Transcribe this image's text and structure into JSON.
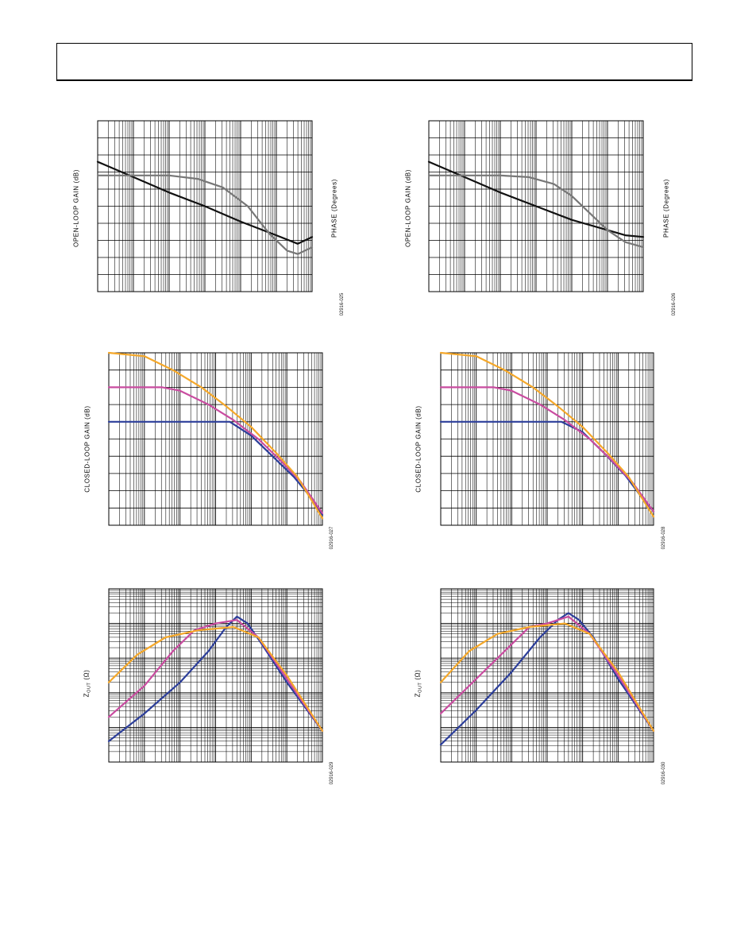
{
  "figures": [
    {
      "id": "ol-left",
      "ylabel": "OPEN-LOOP GAIN (dB)",
      "ylabel2": "PHASE (Degrees)",
      "code": "02916-025",
      "chart_data": {
        "type": "line",
        "xscale": "log",
        "yscale": "linear",
        "grid": true,
        "xlim": [
          0,
          6
        ],
        "ylim": [
          0,
          10
        ],
        "series": [
          {
            "color": "#111111",
            "points": [
              [
                0,
                7.6
              ],
              [
                1,
                6.7
              ],
              [
                2,
                5.8
              ],
              [
                3,
                5.0
              ],
              [
                4,
                4.1
              ],
              [
                5,
                3.3
              ],
              [
                5.6,
                2.8
              ],
              [
                6,
                3.2
              ]
            ]
          },
          {
            "color": "#777777",
            "points": [
              [
                0,
                6.8
              ],
              [
                1,
                6.8
              ],
              [
                2,
                6.8
              ],
              [
                2.8,
                6.6
              ],
              [
                3.5,
                6.1
              ],
              [
                4.2,
                5.0
              ],
              [
                4.8,
                3.4
              ],
              [
                5.3,
                2.4
              ],
              [
                5.6,
                2.2
              ],
              [
                6,
                2.6
              ]
            ]
          }
        ]
      }
    },
    {
      "id": "ol-right",
      "ylabel": "OPEN-LOOP GAIN (dB)",
      "ylabel2": "PHASE (Degrees)",
      "code": "02916-026",
      "chart_data": {
        "type": "line",
        "xscale": "log",
        "yscale": "linear",
        "grid": true,
        "xlim": [
          0,
          6
        ],
        "ylim": [
          0,
          10
        ],
        "series": [
          {
            "color": "#111111",
            "points": [
              [
                0,
                7.6
              ],
              [
                1,
                6.7
              ],
              [
                2,
                5.8
              ],
              [
                3,
                5.0
              ],
              [
                4,
                4.2
              ],
              [
                5,
                3.6
              ],
              [
                5.5,
                3.3
              ],
              [
                6,
                3.2
              ]
            ]
          },
          {
            "color": "#777777",
            "points": [
              [
                0,
                6.8
              ],
              [
                1,
                6.8
              ],
              [
                2,
                6.8
              ],
              [
                2.8,
                6.7
              ],
              [
                3.5,
                6.3
              ],
              [
                4,
                5.6
              ],
              [
                4.5,
                4.6
              ],
              [
                5,
                3.6
              ],
              [
                5.5,
                2.9
              ],
              [
                6,
                2.6
              ]
            ]
          }
        ]
      }
    },
    {
      "id": "cl-left",
      "ylabel": "CLOSED-LOOP GAIN (dB)",
      "code": "02916-027",
      "chart_data": {
        "type": "line",
        "xscale": "log",
        "yscale": "linear",
        "grid": true,
        "xlim": [
          0,
          6
        ],
        "ylim": [
          0,
          10
        ],
        "series": [
          {
            "color": "#2c3e9a",
            "points": [
              [
                0,
                6.0
              ],
              [
                2.5,
                6.0
              ],
              [
                3.4,
                6.0
              ],
              [
                4.0,
                5.2
              ],
              [
                4.6,
                4.0
              ],
              [
                5.2,
                2.8
              ],
              [
                5.6,
                1.8
              ],
              [
                6,
                0.6
              ]
            ]
          },
          {
            "color": "#c94ca0",
            "points": [
              [
                0,
                8.0
              ],
              [
                1.5,
                8.0
              ],
              [
                2.0,
                7.8
              ],
              [
                2.8,
                7.0
              ],
              [
                3.5,
                6.1
              ],
              [
                4.2,
                5.0
              ],
              [
                4.8,
                3.8
              ],
              [
                5.4,
                2.5
              ],
              [
                6,
                0.7
              ]
            ]
          },
          {
            "color": "#f5a82a",
            "points": [
              [
                0,
                10.0
              ],
              [
                1.0,
                9.8
              ],
              [
                1.8,
                9.0
              ],
              [
                2.6,
                8.0
              ],
              [
                3.3,
                6.9
              ],
              [
                4.0,
                5.7
              ],
              [
                4.7,
                4.2
              ],
              [
                5.3,
                2.8
              ],
              [
                6,
                0.4
              ]
            ]
          }
        ]
      }
    },
    {
      "id": "cl-right",
      "ylabel": "CLOSED-LOOP GAIN (dB)",
      "code": "02916-028",
      "chart_data": {
        "type": "line",
        "xscale": "log",
        "yscale": "linear",
        "grid": true,
        "xlim": [
          0,
          6
        ],
        "ylim": [
          0,
          10
        ],
        "series": [
          {
            "color": "#2c3e9a",
            "points": [
              [
                0,
                6.0
              ],
              [
                2.5,
                6.0
              ],
              [
                3.4,
                6.0
              ],
              [
                4.0,
                5.4
              ],
              [
                4.6,
                4.2
              ],
              [
                5.2,
                2.9
              ],
              [
                5.6,
                1.8
              ],
              [
                6,
                0.8
              ]
            ]
          },
          {
            "color": "#c94ca0",
            "points": [
              [
                0,
                8.0
              ],
              [
                1.5,
                8.0
              ],
              [
                2.0,
                7.8
              ],
              [
                2.8,
                7.0
              ],
              [
                3.5,
                6.1
              ],
              [
                4.2,
                5.0
              ],
              [
                4.8,
                3.8
              ],
              [
                5.4,
                2.5
              ],
              [
                6,
                0.8
              ]
            ]
          },
          {
            "color": "#f5a82a",
            "points": [
              [
                0,
                10.0
              ],
              [
                1.0,
                9.8
              ],
              [
                1.8,
                9.0
              ],
              [
                2.6,
                8.0
              ],
              [
                3.3,
                6.9
              ],
              [
                4.0,
                5.7
              ],
              [
                4.7,
                4.2
              ],
              [
                5.3,
                2.8
              ],
              [
                6,
                0.5
              ]
            ]
          }
        ]
      }
    },
    {
      "id": "z-left",
      "ylabel_main": "Z",
      "ylabel_sub": "OUT",
      "ylabel_unit": " (Ω)",
      "code": "02916-029",
      "chart_data": {
        "type": "line",
        "xscale": "log",
        "yscale": "log",
        "grid": true,
        "xlim": [
          0,
          6
        ],
        "ylim": [
          0,
          5
        ],
        "series": [
          {
            "color": "#2c3e9a",
            "points": [
              [
                0,
                0.6
              ],
              [
                1,
                1.4
              ],
              [
                2,
                2.3
              ],
              [
                2.8,
                3.2
              ],
              [
                3.3,
                3.9
              ],
              [
                3.6,
                4.2
              ],
              [
                3.9,
                4.0
              ],
              [
                4.3,
                3.4
              ],
              [
                5,
                2.3
              ],
              [
                6,
                0.9
              ]
            ]
          },
          {
            "color": "#c94ca0",
            "points": [
              [
                0,
                1.3
              ],
              [
                1,
                2.2
              ],
              [
                1.8,
                3.2
              ],
              [
                2.4,
                3.8
              ],
              [
                3,
                4.0
              ],
              [
                3.6,
                4.1
              ],
              [
                4.2,
                3.6
              ],
              [
                5,
                2.4
              ],
              [
                6,
                0.9
              ]
            ]
          },
          {
            "color": "#f5a82a",
            "points": [
              [
                0,
                2.3
              ],
              [
                0.8,
                3.1
              ],
              [
                1.6,
                3.6
              ],
              [
                2.5,
                3.8
              ],
              [
                3.5,
                3.9
              ],
              [
                4.2,
                3.6
              ],
              [
                5,
                2.5
              ],
              [
                6,
                0.9
              ]
            ]
          }
        ]
      }
    },
    {
      "id": "z-right",
      "ylabel_main": "Z",
      "ylabel_sub": "OUT",
      "ylabel_unit": " (Ω)",
      "code": "02916-030",
      "chart_data": {
        "type": "line",
        "xscale": "log",
        "yscale": "log",
        "grid": true,
        "xlim": [
          0,
          6
        ],
        "ylim": [
          0,
          5
        ],
        "series": [
          {
            "color": "#2c3e9a",
            "points": [
              [
                0,
                0.5
              ],
              [
                1,
                1.5
              ],
              [
                2,
                2.6
              ],
              [
                2.8,
                3.6
              ],
              [
                3.3,
                4.1
              ],
              [
                3.6,
                4.3
              ],
              [
                3.9,
                4.1
              ],
              [
                4.3,
                3.6
              ],
              [
                5,
                2.4
              ],
              [
                6,
                0.9
              ]
            ]
          },
          {
            "color": "#c94ca0",
            "points": [
              [
                0,
                1.4
              ],
              [
                1,
                2.4
              ],
              [
                2,
                3.4
              ],
              [
                2.5,
                3.9
              ],
              [
                3,
                4.0
              ],
              [
                3.6,
                4.2
              ],
              [
                4.2,
                3.7
              ],
              [
                5,
                2.5
              ],
              [
                6,
                0.9
              ]
            ]
          },
          {
            "color": "#f5a82a",
            "points": [
              [
                0,
                2.3
              ],
              [
                0.8,
                3.2
              ],
              [
                1.6,
                3.7
              ],
              [
                2.5,
                3.9
              ],
              [
                3.5,
                4.0
              ],
              [
                4.2,
                3.7
              ],
              [
                5,
                2.6
              ],
              [
                6,
                0.9
              ]
            ]
          }
        ]
      }
    }
  ]
}
